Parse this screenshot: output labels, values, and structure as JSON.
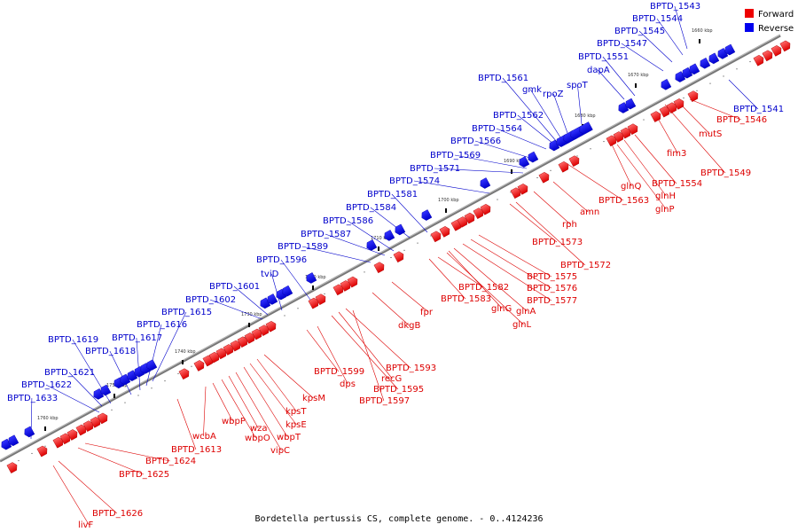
{
  "caption": "Bordetella pertussis CS, complete genome. - 0..4124236",
  "legend": [
    {
      "label": "Forward",
      "color": "#ee0000"
    },
    {
      "label": "Reverse",
      "color": "#0000ee"
    }
  ],
  "colors": {
    "forward": "#ee0000",
    "reverse": "#0000ee",
    "axis": "#777777"
  },
  "ticks": [
    "1660 kbp",
    "1670 kbp",
    "1680 kbp",
    "1690 kbp",
    "1700 kbp",
    "1710 kbp",
    "1720 kbp",
    "1730 kbp",
    "1740 kbp",
    "1750 kbp",
    "1760 kbp"
  ],
  "reverse_labels": [
    "BPTD_1541",
    "BPTD_1543",
    "BPTD_1544",
    "BPTD_1545",
    "BPTD_1547",
    "BPTD_1551",
    "dapA",
    "spoT",
    "rpoZ",
    "gmk",
    "BPTD_1561",
    "BPTD_1562",
    "BPTD_1564",
    "BPTD_1566",
    "BPTD_1569",
    "BPTD_1571",
    "BPTD_1574",
    "BPTD_1581",
    "BPTD_1584",
    "BPTD_1586",
    "BPTD_1587",
    "BPTD_1589",
    "BPTD_1596",
    "tviD",
    "BPTD_1601",
    "BPTD_1602",
    "BPTD_1615",
    "BPTD_1616",
    "BPTD_1617",
    "BPTD_1618",
    "BPTD_1619",
    "BPTD_1621",
    "BPTD_1622",
    "BPTD_1633"
  ],
  "forward_labels": [
    "BPTD_1546",
    "mutS",
    "BPTD_1549",
    "fim3",
    "BPTD_1554",
    "glnH",
    "glnP",
    "glnQ",
    "BPTD_1563",
    "amn",
    "rph",
    "BPTD_1573",
    "BPTD_1572",
    "BPTD_1575",
    "BPTD_1576",
    "BPTD_1577",
    "glnA",
    "glnL",
    "glnG",
    "BPTD_1582",
    "BPTD_1583",
    "fpr",
    "dkgB",
    "BPTD_1593",
    "recG",
    "BPTD_1595",
    "BPTD_1597",
    "dps",
    "BPTD_1599",
    "kpsM",
    "kpsT",
    "kpsE",
    "wbpT",
    "vipC",
    "wza",
    "wbpO",
    "wbpP",
    "wcbA",
    "BPTD_1613",
    "BPTD_1624",
    "BPTD_1625",
    "BPTD_1626",
    "livF"
  ]
}
